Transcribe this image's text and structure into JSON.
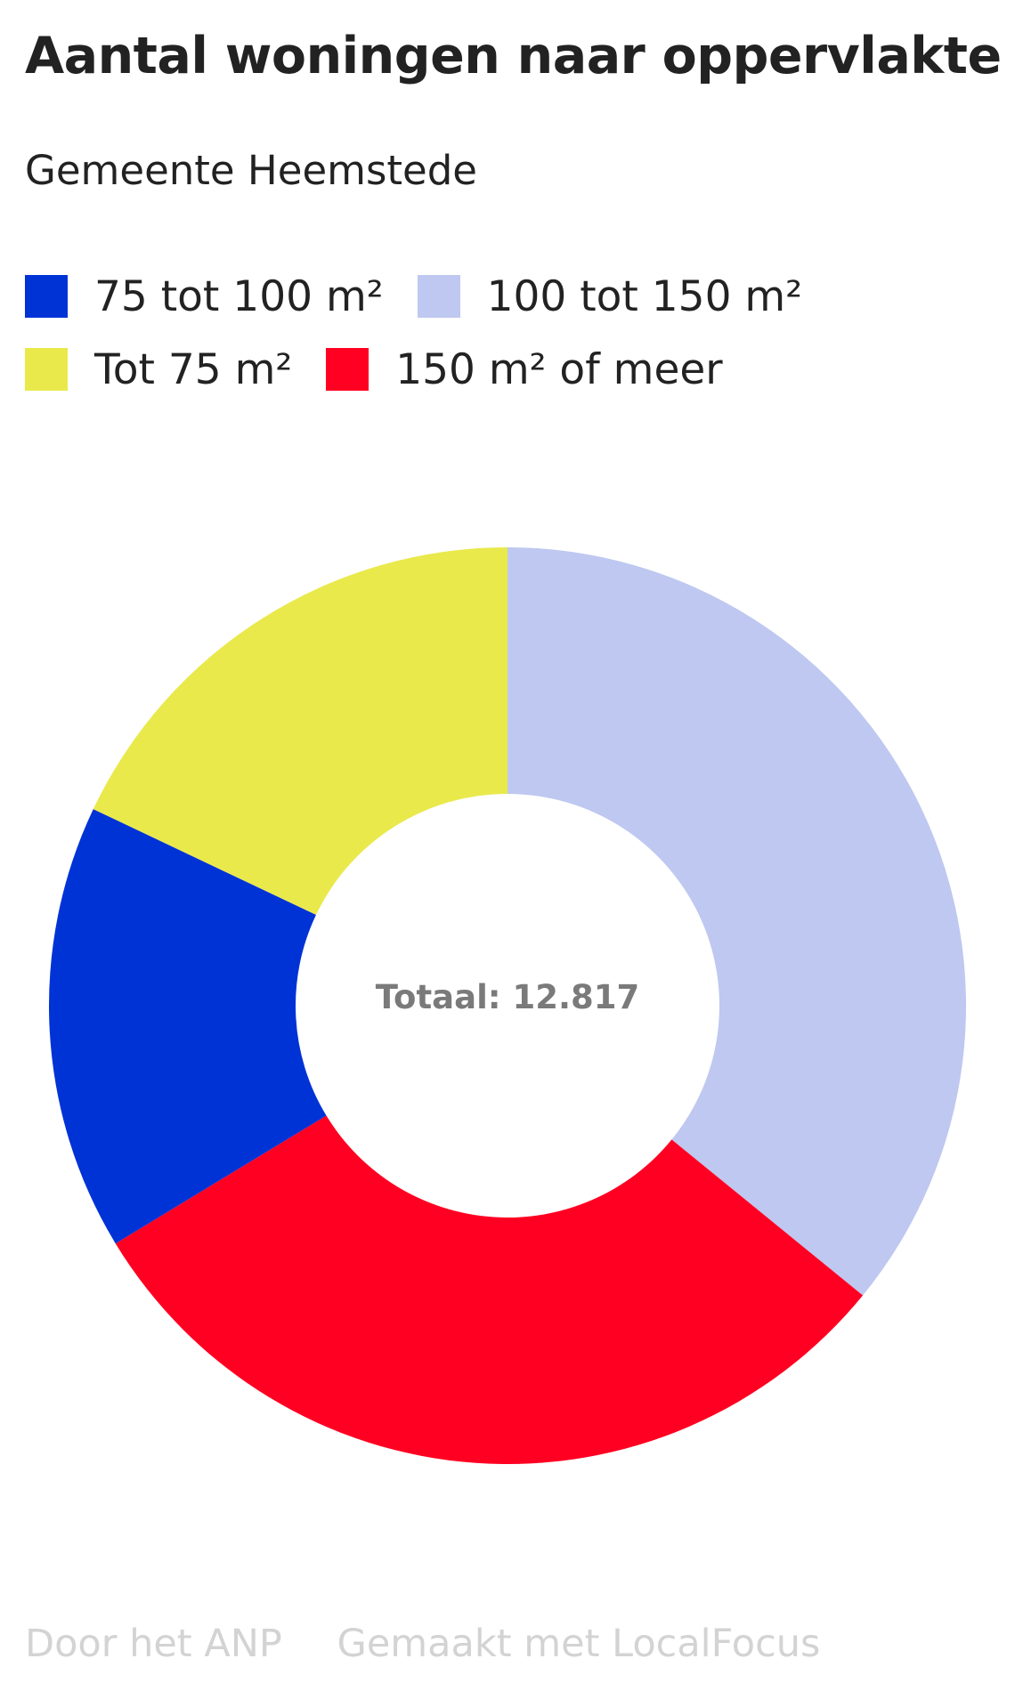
{
  "chart_data": {
    "type": "pie",
    "title": "Aantal woningen naar oppervlakte",
    "subtitle": "Gemeente Heemstede",
    "center_label": "Totaal: 12.817",
    "legend_placement": "top",
    "legend": [
      [
        "75 tot 100 m²",
        "100 tot 150 m²"
      ],
      [
        "Tot 75 m²",
        "150 m² of meer"
      ]
    ],
    "slices": [
      {
        "name": "100 tot 150 m²",
        "value": 4600,
        "color": "#bec8f0"
      },
      {
        "name": "150 m² of meer",
        "value": 3900,
        "color": "#ff0022"
      },
      {
        "name": "75 tot 100 m²",
        "value": 2017,
        "color": "#0033d6"
      },
      {
        "name": "Tot 75 m²",
        "value": 2300,
        "color": "#e9e94c"
      }
    ]
  },
  "footer": {
    "credit": "Door het ANP",
    "made_with": "Gemaakt met LocalFocus"
  }
}
